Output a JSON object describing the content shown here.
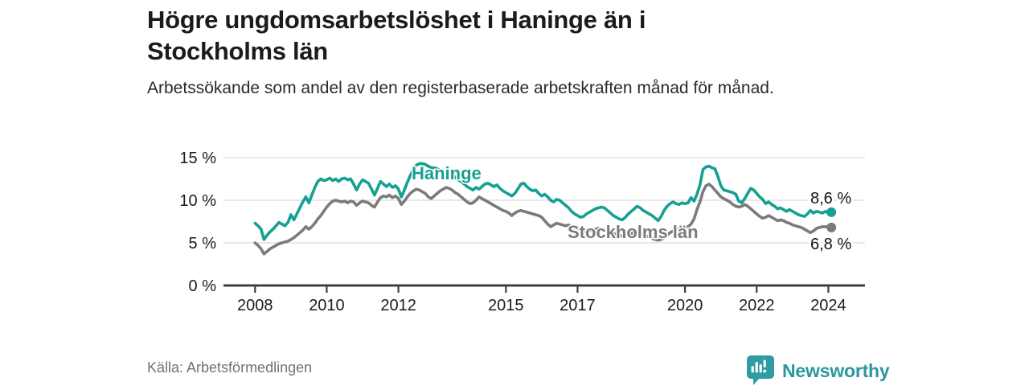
{
  "header": {
    "title": "Högre ungdomsarbetslöshet i Haninge än i Stockholms län",
    "subtitle": "Arbetssökande som andel av den registerbaserade arbetskraften månad för månad."
  },
  "footer": {
    "source": "Källa: Arbetsförmedlingen",
    "brand": "Newsworthy"
  },
  "colors": {
    "haninge": "#15a191",
    "stockholm": "#7b7b7b",
    "axis": "#3f3f3f",
    "gridline": "#d9d9d9",
    "brand_teal": "#2b97a0"
  },
  "chart_data": {
    "type": "line",
    "title": "Högre ungdomsarbetslöshet i Haninge än i Stockholms län",
    "subtitle": "Arbetssökande som andel av den registerbaserade arbetskraften månad för månad.",
    "x_start_year": 2008,
    "x_interval": "monthly",
    "x_ticks": [
      2008,
      2010,
      2012,
      2015,
      2017,
      2020,
      2022,
      2024
    ],
    "y_ticks": [
      0,
      5,
      10,
      15
    ],
    "y_tick_labels": [
      "0 %",
      "5 %",
      "10 %",
      "15 %"
    ],
    "ylim": [
      0,
      16.5
    ],
    "xlim": [
      2007.9,
      2025.0
    ],
    "grid": "horizontal",
    "legend_position": "inline-labels",
    "series": [
      {
        "name": "Haninge",
        "color": "#15a191",
        "end_label": "8,6 %",
        "end_label_position": "above",
        "values": [
          7.3,
          7.0,
          6.6,
          5.4,
          5.9,
          6.3,
          6.6,
          7.0,
          7.4,
          7.2,
          7.0,
          7.4,
          8.3,
          7.7,
          8.4,
          9.1,
          9.8,
          10.4,
          9.7,
          10.6,
          11.5,
          12.2,
          12.5,
          12.3,
          12.4,
          12.6,
          12.3,
          12.5,
          12.2,
          12.5,
          12.6,
          12.4,
          12.5,
          11.9,
          11.2,
          11.9,
          12.4,
          12.2,
          12.0,
          11.3,
          10.6,
          11.4,
          12.2,
          11.9,
          11.6,
          11.9,
          11.5,
          11.7,
          11.3,
          10.4,
          11.2,
          12.1,
          12.9,
          13.6,
          14.1,
          14.3,
          14.3,
          14.2,
          14.0,
          13.8,
          13.8,
          13.7,
          13.5,
          13.0,
          13.4,
          13.3,
          13.0,
          12.7,
          12.4,
          12.2,
          11.9,
          11.6,
          11.4,
          11.2,
          11.5,
          11.3,
          11.6,
          11.9,
          12.0,
          11.8,
          11.6,
          11.8,
          11.4,
          11.1,
          10.9,
          10.7,
          10.5,
          10.8,
          11.3,
          11.9,
          12.0,
          11.6,
          11.3,
          11.1,
          11.2,
          10.8,
          10.5,
          10.7,
          10.4,
          10.0,
          9.8,
          10.1,
          10.0,
          9.7,
          9.4,
          9.1,
          8.7,
          8.4,
          8.2,
          8.0,
          8.1,
          8.4,
          8.6,
          8.8,
          9.0,
          9.1,
          9.2,
          9.1,
          8.8,
          8.5,
          8.2,
          8.0,
          7.8,
          7.7,
          8.0,
          8.4,
          8.7,
          9.0,
          9.3,
          9.1,
          8.8,
          8.6,
          8.4,
          8.2,
          7.9,
          7.6,
          8.1,
          8.8,
          9.3,
          9.6,
          9.8,
          9.6,
          9.5,
          9.7,
          9.6,
          9.7,
          10.3,
          9.9,
          10.7,
          11.8,
          13.6,
          13.9,
          14.0,
          13.8,
          13.7,
          12.8,
          11.7,
          11.2,
          11.1,
          11.0,
          10.9,
          10.7,
          9.9,
          9.7,
          10.2,
          10.8,
          11.4,
          11.2,
          10.8,
          10.4,
          10.1,
          9.6,
          9.8,
          9.5,
          9.3,
          9.0,
          9.1,
          8.9,
          8.7,
          8.9,
          8.7,
          8.5,
          8.3,
          8.2,
          8.1,
          8.4,
          8.8,
          8.5,
          8.7,
          8.6,
          8.5,
          8.7,
          8.5,
          8.6
        ]
      },
      {
        "name": "Stockholms län",
        "color": "#7b7b7b",
        "end_label": "6,8 %",
        "end_label_position": "below",
        "values": [
          5.0,
          4.7,
          4.3,
          3.7,
          4.0,
          4.3,
          4.5,
          4.7,
          4.9,
          5.0,
          5.1,
          5.2,
          5.4,
          5.6,
          5.9,
          6.2,
          6.5,
          6.9,
          6.6,
          6.9,
          7.3,
          7.8,
          8.2,
          8.7,
          9.2,
          9.6,
          9.9,
          10.0,
          9.9,
          9.8,
          9.9,
          9.7,
          9.9,
          9.8,
          9.4,
          9.7,
          9.9,
          9.8,
          9.7,
          9.4,
          9.2,
          9.8,
          10.3,
          10.5,
          10.4,
          10.6,
          10.3,
          10.5,
          10.2,
          9.5,
          9.9,
          10.4,
          10.8,
          11.1,
          11.3,
          11.2,
          11.0,
          10.8,
          10.4,
          10.2,
          10.5,
          10.8,
          11.1,
          11.3,
          11.5,
          11.4,
          11.2,
          10.9,
          10.7,
          10.4,
          10.1,
          9.8,
          9.6,
          9.7,
          10.0,
          10.4,
          10.2,
          10.0,
          9.8,
          9.6,
          9.4,
          9.2,
          9.0,
          8.8,
          8.7,
          8.5,
          8.2,
          8.5,
          8.7,
          8.8,
          8.7,
          8.6,
          8.5,
          8.4,
          8.3,
          8.2,
          8.0,
          7.6,
          7.2,
          6.9,
          7.1,
          7.3,
          7.2,
          7.1,
          7.0,
          7.1,
          6.9,
          6.8,
          6.7,
          6.5,
          6.4,
          6.3,
          6.4,
          6.5,
          6.6,
          6.7,
          6.6,
          6.5,
          6.3,
          6.2,
          6.1,
          6.0,
          5.9,
          5.8,
          5.9,
          6.0,
          6.1,
          6.2,
          6.3,
          6.2,
          6.0,
          5.8,
          5.7,
          5.5,
          5.4,
          5.3,
          5.4,
          5.6,
          5.9,
          6.2,
          6.4,
          6.5,
          6.6,
          6.7,
          6.8,
          6.9,
          7.2,
          7.8,
          8.9,
          9.8,
          11.0,
          11.7,
          11.9,
          11.6,
          11.2,
          10.8,
          10.4,
          10.2,
          10.0,
          9.8,
          9.5,
          9.3,
          9.2,
          9.3,
          9.5,
          9.3,
          9.0,
          8.7,
          8.4,
          8.1,
          7.9,
          8.0,
          8.2,
          8.0,
          7.8,
          7.6,
          7.7,
          7.6,
          7.4,
          7.3,
          7.1,
          7.0,
          6.9,
          6.8,
          6.6,
          6.4,
          6.2,
          6.4,
          6.7,
          6.8,
          6.9,
          6.9,
          6.9,
          6.8
        ]
      }
    ]
  }
}
